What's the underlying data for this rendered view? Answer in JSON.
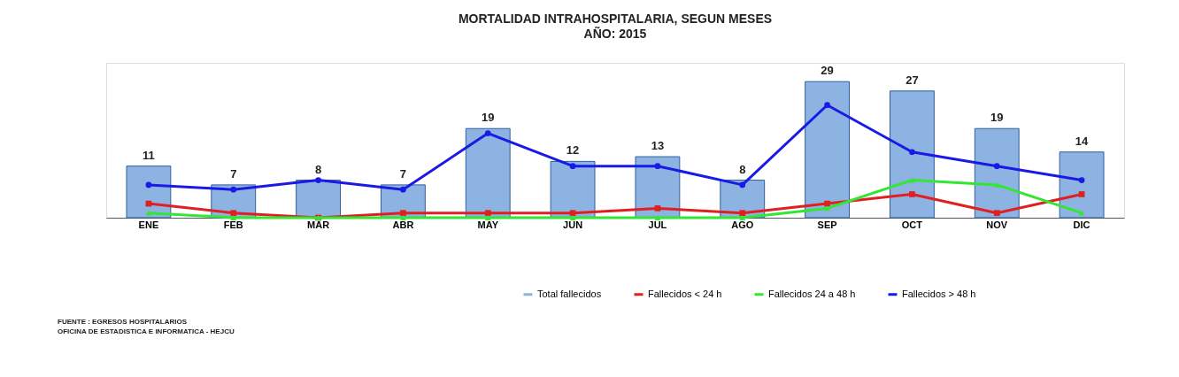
{
  "chart_data": {
    "type": "bar",
    "title": "MORTALIDAD INTRAHOSPITALARIA, SEGUN MESES",
    "subtitle": "AÑO: 2015",
    "categories": [
      "ENE",
      "FEB",
      "MAR",
      "ABR",
      "MAY",
      "JUN",
      "JUL",
      "AGO",
      "SEP",
      "OCT",
      "NOV",
      "DIC"
    ],
    "ylim": [
      0,
      33
    ],
    "legend": "bottom right",
    "grid": false,
    "tick_labels": "x",
    "series": [
      {
        "name": "Total fallecidos",
        "color": "#8db3e2",
        "values": [
          11,
          7,
          8,
          7,
          19,
          12,
          13,
          8,
          29,
          27,
          19,
          14
        ],
        "value_labels": [
          "11",
          "7",
          "8",
          "7",
          "19",
          "12",
          "13",
          "8",
          "29",
          "27",
          "19",
          "14"
        ]
      },
      {
        "name": "Fallecidos < 24 h",
        "type": "line",
        "color": "#e02020",
        "marker": "square",
        "values": [
          3,
          1,
          0,
          1,
          1,
          1,
          2,
          1,
          3,
          5,
          1,
          5
        ]
      },
      {
        "name": "Fallecidos 24 a 48 h",
        "type": "line",
        "color": "#33e633",
        "marker": "triangle",
        "values": [
          1,
          0,
          0,
          0,
          0,
          0,
          0,
          0,
          2,
          8,
          7,
          1
        ]
      },
      {
        "name": "Fallecidos > 48 h",
        "type": "line",
        "color": "#1a1ae6",
        "marker": "circle",
        "values": [
          7,
          6,
          8,
          6,
          18,
          11,
          11,
          7,
          24,
          14,
          11,
          8
        ]
      }
    ],
    "annotations": [
      "FUENTE : EGRESOS HOSPITALARIOS",
      "OFICINA DE ESTADISTICA E INFORMATICA - HEJCU"
    ]
  }
}
